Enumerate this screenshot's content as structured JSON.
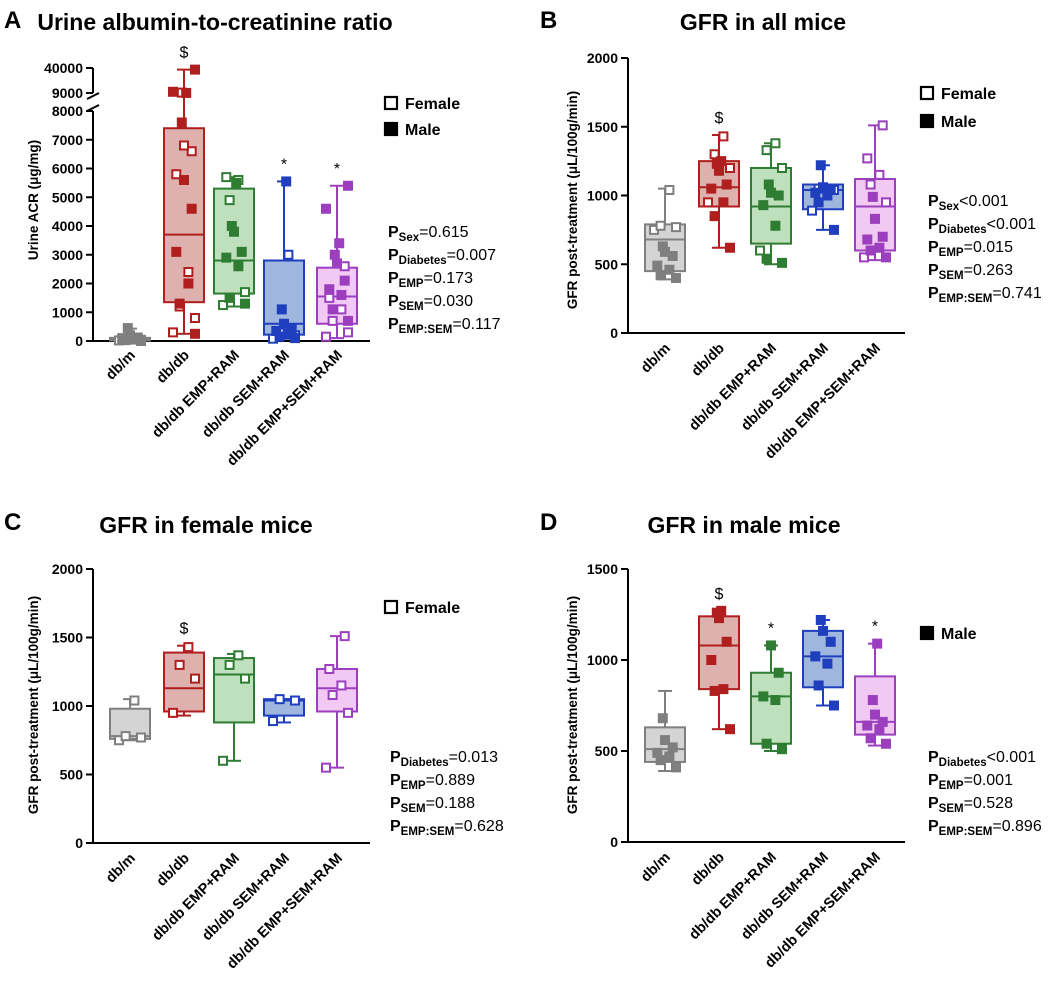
{
  "chart_data": [
    {
      "panel": "A",
      "type": "box",
      "title": "Urine albumin-to-creatinine ratio",
      "ylabel": "Urine ACR (μg/mg)",
      "xlabel": "",
      "categories": [
        "db/m",
        "db/db",
        "db/db EMP+RAM",
        "db/db SEM+RAM",
        "db/db EMP+SEM+RAM"
      ],
      "colors": [
        "#7f7f7f",
        "#b01e1e",
        "#2e7d32",
        "#1f3fbf",
        "#9b3fbf"
      ],
      "fills": [
        "#d4d4d4",
        "#deb0ae",
        "#bfe0bc",
        "#9fb6de",
        "#f1c9f3"
      ],
      "axis_break": true,
      "ylim_lower": [
        0,
        8000
      ],
      "ylim_upper": [
        9000,
        40000
      ],
      "yticks_lower": [
        "0",
        "1000",
        "2000",
        "3000",
        "4000",
        "5000",
        "6000",
        "7000",
        "8000"
      ],
      "yticks_upper": [
        "9000",
        "40000"
      ],
      "boxes": [
        {
          "min": 0,
          "q1": 20,
          "median": 60,
          "q3": 110,
          "max": 430
        },
        {
          "min": 250,
          "q1": 1350,
          "median": 3700,
          "q3": 7400,
          "max": 38000
        },
        {
          "min": 1200,
          "q1": 1650,
          "median": 2800,
          "q3": 5300,
          "max": 5700
        },
        {
          "min": 80,
          "q1": 220,
          "median": 600,
          "q3": 2800,
          "max": 5550
        },
        {
          "min": 100,
          "q1": 600,
          "median": 1550,
          "q3": 2550,
          "max": 5400
        }
      ],
      "female": [
        [
          20,
          40,
          60,
          80,
          100,
          120
        ],
        [
          300,
          800,
          1200,
          2400,
          5800,
          6600,
          6800,
          9500
        ],
        [
          1250,
          1700,
          4900,
          5600,
          5700
        ],
        [
          80,
          200,
          300,
          3000
        ],
        [
          150,
          300,
          700,
          1100,
          1500,
          2600
        ]
      ],
      "male": [
        [
          0,
          30,
          50,
          70,
          110,
          200,
          450
        ],
        [
          250,
          1300,
          2000,
          3100,
          4600,
          5600,
          7600,
          9100,
          10500,
          38000
        ],
        [
          1300,
          1500,
          2600,
          2900,
          3100,
          3800,
          4000,
          5500
        ],
        [
          100,
          150,
          250,
          350,
          400,
          600,
          1100,
          5550
        ],
        [
          700,
          1100,
          1600,
          1800,
          2100,
          2700,
          3000,
          3400,
          4600,
          5400
        ]
      ],
      "significance": [
        "",
        "$",
        "",
        "*",
        "*"
      ],
      "legend": [
        "Female",
        "Male"
      ],
      "stats": [
        {
          "p": "P",
          "sub": "Sex",
          "rest": "=0.615"
        },
        {
          "p": "P",
          "sub": "Diabetes",
          "rest": "=0.007"
        },
        {
          "p": "P",
          "sub": "EMP",
          "rest": "=0.173"
        },
        {
          "p": "P",
          "sub": "SEM",
          "rest": "=0.030"
        },
        {
          "p": "P",
          "sub": "EMP:SEM",
          "rest": "=0.117"
        }
      ]
    },
    {
      "panel": "B",
      "type": "box",
      "title": "GFR in all mice",
      "ylabel": "GFR post-treatment (μL/100g/min)",
      "xlabel": "",
      "categories": [
        "db/m",
        "db/db",
        "db/db EMP+RAM",
        "db/db SEM+RAM",
        "db/db EMP+SEM+RAM"
      ],
      "colors": [
        "#7f7f7f",
        "#b01e1e",
        "#2e7d32",
        "#1f3fbf",
        "#9b3fbf"
      ],
      "fills": [
        "#d4d4d4",
        "#deb0ae",
        "#bfe0bc",
        "#9fb6de",
        "#f1c9f3"
      ],
      "ylim": [
        0,
        2000
      ],
      "yticks": [
        "0",
        "500",
        "1000",
        "1500",
        "2000"
      ],
      "boxes": [
        {
          "min": 390,
          "q1": 450,
          "median": 680,
          "q3": 790,
          "max": 1050
        },
        {
          "min": 620,
          "q1": 920,
          "median": 1060,
          "q3": 1250,
          "max": 1440
        },
        {
          "min": 500,
          "q1": 650,
          "median": 920,
          "q3": 1200,
          "max": 1380
        },
        {
          "min": 750,
          "q1": 900,
          "median": 1040,
          "q3": 1080,
          "max": 1220
        },
        {
          "min": 530,
          "q1": 600,
          "median": 920,
          "q3": 1120,
          "max": 1510
        }
      ],
      "female": [
        [
          750,
          770,
          780,
          1040
        ],
        [
          950,
          1200,
          1300,
          1430
        ],
        [
          600,
          1200,
          1330,
          1380
        ],
        [
          890,
          1040,
          1050
        ],
        [
          550,
          950,
          1080,
          1150,
          1270,
          1510
        ]
      ],
      "male": [
        [
          400,
          420,
          460,
          490,
          560,
          590,
          630
        ],
        [
          620,
          850,
          950,
          1050,
          1080,
          1180,
          1230,
          1250
        ],
        [
          510,
          540,
          780,
          930,
          1000,
          1020,
          1080
        ],
        [
          750,
          950,
          1000,
          1020,
          1050,
          1060,
          1220
        ],
        [
          550,
          600,
          620,
          680,
          700,
          830,
          990
        ]
      ],
      "significance": [
        "",
        "$",
        "",
        "",
        ""
      ],
      "legend": [
        "Female",
        "Male"
      ],
      "stats": [
        {
          "p": "P",
          "sub": "Sex",
          "rest": "<0.001"
        },
        {
          "p": "P",
          "sub": "Diabetes",
          "rest": "<0.001"
        },
        {
          "p": "P",
          "sub": "EMP",
          "rest": "=0.015"
        },
        {
          "p": "P",
          "sub": "SEM",
          "rest": "=0.263"
        },
        {
          "p": "P",
          "sub": "EMP:SEM",
          "rest": "=0.741"
        }
      ]
    },
    {
      "panel": "C",
      "type": "box",
      "title": "GFR in female mice",
      "ylabel": "GFR post-treatment (μL/100g/min)",
      "xlabel": "",
      "categories": [
        "db/m",
        "db/db",
        "db/db EMP+RAM",
        "db/db SEM+RAM",
        "db/db EMP+SEM+RAM"
      ],
      "colors": [
        "#7f7f7f",
        "#b01e1e",
        "#2e7d32",
        "#1f3fbf",
        "#9b3fbf"
      ],
      "fills": [
        "#d4d4d4",
        "#deb0ae",
        "#bfe0bc",
        "#9fb6de",
        "#f1c9f3"
      ],
      "ylim": [
        0,
        2000
      ],
      "yticks": [
        "0",
        "500",
        "1000",
        "1500",
        "2000"
      ],
      "boxes": [
        {
          "min": 750,
          "q1": 760,
          "median": 780,
          "q3": 980,
          "max": 1050
        },
        {
          "min": 930,
          "q1": 960,
          "median": 1130,
          "q3": 1390,
          "max": 1440
        },
        {
          "min": 600,
          "q1": 880,
          "median": 1230,
          "q3": 1350,
          "max": 1380
        },
        {
          "min": 880,
          "q1": 930,
          "median": 1040,
          "q3": 1050,
          "max": 1050
        },
        {
          "min": 550,
          "q1": 960,
          "median": 1130,
          "q3": 1270,
          "max": 1510
        }
      ],
      "female": [
        [
          750,
          770,
          780,
          1040
        ],
        [
          950,
          1200,
          1300,
          1430
        ],
        [
          600,
          1200,
          1300,
          1370
        ],
        [
          890,
          1040,
          1050
        ],
        [
          550,
          950,
          1080,
          1150,
          1270,
          1510
        ]
      ],
      "male": [
        [],
        [],
        [],
        [],
        []
      ],
      "significance": [
        "",
        "$",
        "",
        "",
        ""
      ],
      "legend": [
        "Female"
      ],
      "stats": [
        {
          "p": "P",
          "sub": "Diabetes",
          "rest": "=0.013"
        },
        {
          "p": "P",
          "sub": "EMP",
          "rest": "=0.889"
        },
        {
          "p": "P",
          "sub": "SEM",
          "rest": "=0.188"
        },
        {
          "p": "P",
          "sub": "EMP:SEM",
          "rest": "=0.628"
        }
      ]
    },
    {
      "panel": "D",
      "type": "box",
      "title": "GFR in male mice",
      "ylabel": "GFR post-treatment (μL/100g/min)",
      "xlabel": "",
      "categories": [
        "db/m",
        "db/db",
        "db/db EMP+RAM",
        "db/db SEM+RAM",
        "db/db EMP+SEM+RAM"
      ],
      "colors": [
        "#7f7f7f",
        "#b01e1e",
        "#2e7d32",
        "#1f3fbf",
        "#9b3fbf"
      ],
      "fills": [
        "#d4d4d4",
        "#deb0ae",
        "#bfe0bc",
        "#9fb6de",
        "#f1c9f3"
      ],
      "ylim": [
        0,
        1500
      ],
      "yticks": [
        "0",
        "500",
        "1000",
        "1500"
      ],
      "boxes": [
        {
          "min": 390,
          "q1": 440,
          "median": 510,
          "q3": 630,
          "max": 830
        },
        {
          "min": 620,
          "q1": 840,
          "median": 1080,
          "q3": 1240,
          "max": 1270
        },
        {
          "min": 500,
          "q1": 540,
          "median": 800,
          "q3": 930,
          "max": 1080
        },
        {
          "min": 750,
          "q1": 850,
          "median": 1020,
          "q3": 1160,
          "max": 1220
        },
        {
          "min": 530,
          "q1": 590,
          "median": 660,
          "q3": 910,
          "max": 1090
        }
      ],
      "female": [
        [],
        [],
        [],
        [],
        []
      ],
      "male": [
        [
          410,
          450,
          470,
          490,
          520,
          560,
          680
        ],
        [
          620,
          830,
          840,
          1000,
          1100,
          1230,
          1260,
          1270
        ],
        [
          510,
          540,
          780,
          800,
          930,
          1080
        ],
        [
          750,
          860,
          980,
          1020,
          1100,
          1160,
          1220
        ],
        [
          540,
          570,
          620,
          640,
          660,
          700,
          780,
          1090
        ]
      ],
      "significance": [
        "",
        "$",
        "*",
        "",
        "*"
      ],
      "legend": [
        "Male"
      ],
      "stats": [
        {
          "p": "P",
          "sub": "Diabetes",
          "rest": "<0.001"
        },
        {
          "p": "P",
          "sub": "EMP",
          "rest": "=0.001"
        },
        {
          "p": "P",
          "sub": "SEM",
          "rest": "=0.528"
        },
        {
          "p": "P",
          "sub": "EMP:SEM",
          "rest": "=0.896"
        }
      ]
    }
  ]
}
